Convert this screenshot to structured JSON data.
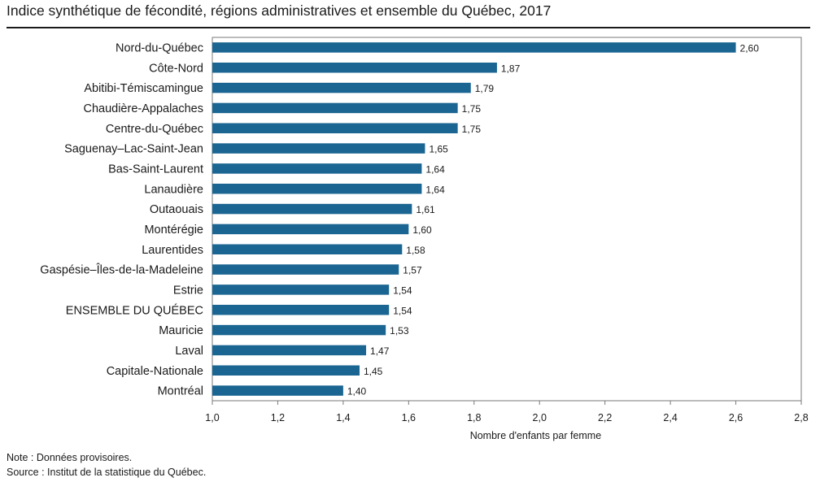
{
  "title": "Indice synthétique de fécondité, régions administratives et ensemble du Québec, 2017",
  "colors": {
    "bar": "#1a6591",
    "frame": "#7a7a7a",
    "text": "#1a1a1a"
  },
  "notes": {
    "note_label": "Note :",
    "note_text": "Données provisoires.",
    "source_label": "Source :",
    "source_text": "Institut de la statistique du Québec."
  },
  "chart_data": {
    "type": "bar",
    "orientation": "horizontal",
    "title": "Indice synthétique de fécondité, régions administratives et ensemble du Québec, 2017",
    "xlabel": "Nombre d'enfants par femme",
    "ylabel": "",
    "xlim": [
      1.0,
      2.8
    ],
    "xticks": [
      1.0,
      1.2,
      1.4,
      1.6,
      1.8,
      2.0,
      2.2,
      2.4,
      2.6,
      2.8
    ],
    "xtick_labels": [
      "1,0",
      "1,2",
      "1,4",
      "1,6",
      "1,8",
      "2,0",
      "2,2",
      "2,4",
      "2,6",
      "2,8"
    ],
    "categories": [
      "Nord-du-Québec",
      "Côte-Nord",
      "Abitibi-Témiscamingue",
      "Chaudière-Appalaches",
      "Centre-du-Québec",
      "Saguenay–Lac-Saint-Jean",
      "Bas-Saint-Laurent",
      "Lanaudière",
      "Outaouais",
      "Montérégie",
      "Laurentides",
      "Gaspésie–Îles-de-la-Madeleine",
      "Estrie",
      "ENSEMBLE DU QUÉBEC",
      "Mauricie",
      "Laval",
      "Capitale-Nationale",
      "Montréal"
    ],
    "values": [
      2.6,
      1.87,
      1.79,
      1.75,
      1.75,
      1.65,
      1.64,
      1.64,
      1.61,
      1.6,
      1.58,
      1.57,
      1.54,
      1.54,
      1.53,
      1.47,
      1.45,
      1.4
    ],
    "value_labels": [
      "2,60",
      "1,87",
      "1,79",
      "1,75",
      "1,75",
      "1,65",
      "1,64",
      "1,64",
      "1,61",
      "1,60",
      "1,58",
      "1,57",
      "1,54",
      "1,54",
      "1,53",
      "1,47",
      "1,45",
      "1,40"
    ],
    "grid": false,
    "legend": "none"
  }
}
